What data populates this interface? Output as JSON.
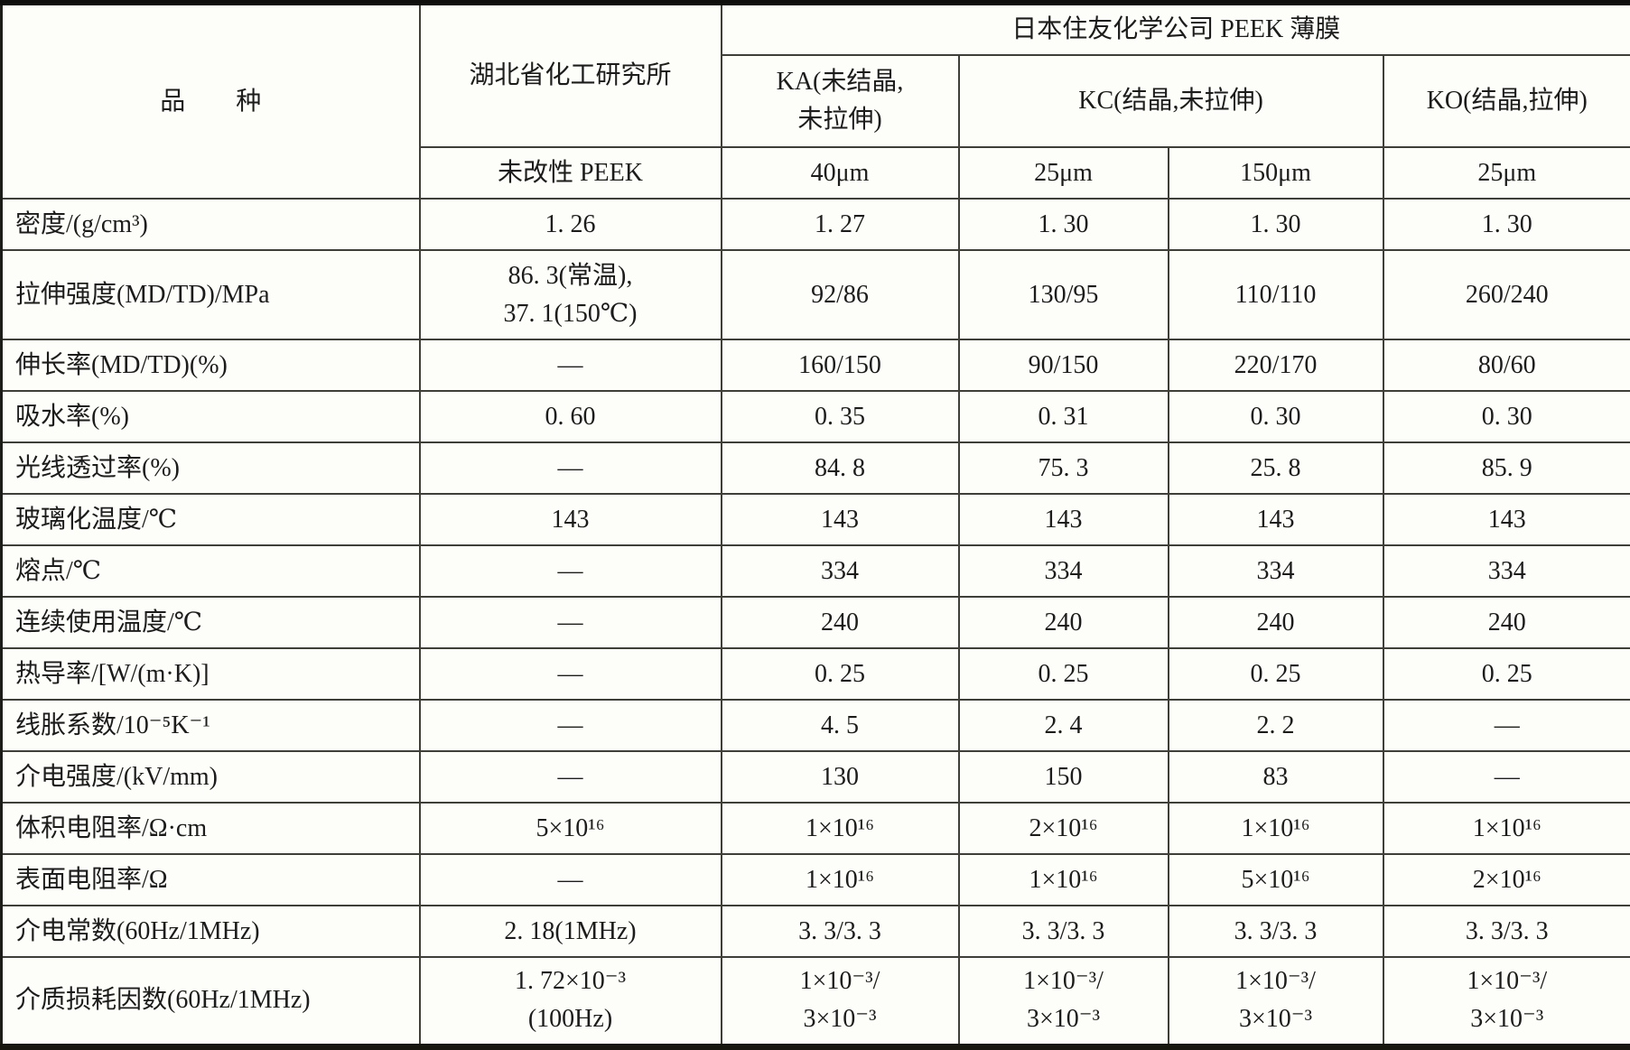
{
  "table": {
    "corner_label": "品　　种",
    "left_producer": "湖北省化工研究所",
    "right_producer": "日本住友化学公司 PEEK 薄膜",
    "grades": [
      "KA(未结晶,\n未拉伸)",
      "KC(结晶,未拉伸)",
      "KO(结晶,拉伸)"
    ],
    "specs": [
      "未改性 PEEK",
      "40μm",
      "25μm",
      "150μm",
      "25μm"
    ],
    "rows": [
      {
        "label": "密度/(g/cm³)",
        "values": [
          "1. 26",
          "1. 27",
          "1. 30",
          "1. 30",
          "1. 30"
        ]
      },
      {
        "label": "拉伸强度(MD/TD)/MPa",
        "tall": true,
        "values": [
          "86. 3(常温),\n37. 1(150℃)",
          "92/86",
          "130/95",
          "110/110",
          "260/240"
        ]
      },
      {
        "label": "伸长率(MD/TD)(%)",
        "values": [
          "—",
          "160/150",
          "90/150",
          "220/170",
          "80/60"
        ]
      },
      {
        "label": "吸水率(%)",
        "values": [
          "0. 60",
          "0. 35",
          "0. 31",
          "0. 30",
          "0. 30"
        ]
      },
      {
        "label": "光线透过率(%)",
        "values": [
          "—",
          "84. 8",
          "75. 3",
          "25. 8",
          "85. 9"
        ]
      },
      {
        "label": "玻璃化温度/℃",
        "values": [
          "143",
          "143",
          "143",
          "143",
          "143"
        ]
      },
      {
        "label": "熔点/℃",
        "values": [
          "—",
          "334",
          "334",
          "334",
          "334"
        ]
      },
      {
        "label": "连续使用温度/℃",
        "values": [
          "—",
          "240",
          "240",
          "240",
          "240"
        ]
      },
      {
        "label": "热导率/[W/(m·K)]",
        "values": [
          "—",
          "0. 25",
          "0. 25",
          "0. 25",
          "0. 25"
        ]
      },
      {
        "label": "线胀系数/10⁻⁵K⁻¹",
        "values": [
          "—",
          "4. 5",
          "2. 4",
          "2. 2",
          "—"
        ]
      },
      {
        "label": "介电强度/(kV/mm)",
        "values": [
          "—",
          "130",
          "150",
          "83",
          "—"
        ]
      },
      {
        "label": "体积电阻率/Ω·cm",
        "values": [
          "5×10¹⁶",
          "1×10¹⁶",
          "2×10¹⁶",
          "1×10¹⁶",
          "1×10¹⁶"
        ]
      },
      {
        "label": "表面电阻率/Ω",
        "values": [
          "—",
          "1×10¹⁶",
          "1×10¹⁶",
          "5×10¹⁶",
          "2×10¹⁶"
        ]
      },
      {
        "label": "介电常数(60Hz/1MHz)",
        "values": [
          "2. 18(1MHz)",
          "3. 3/3. 3",
          "3. 3/3. 3",
          "3. 3/3. 3",
          "3. 3/3. 3"
        ]
      },
      {
        "label": "介质损耗因数(60Hz/1MHz)",
        "tall": true,
        "values": [
          "1. 72×10⁻³\n(100Hz)",
          "1×10⁻³/\n3×10⁻³",
          "1×10⁻³/\n3×10⁻³",
          "1×10⁻³/\n3×10⁻³",
          "1×10⁻³/\n3×10⁻³"
        ]
      }
    ]
  }
}
